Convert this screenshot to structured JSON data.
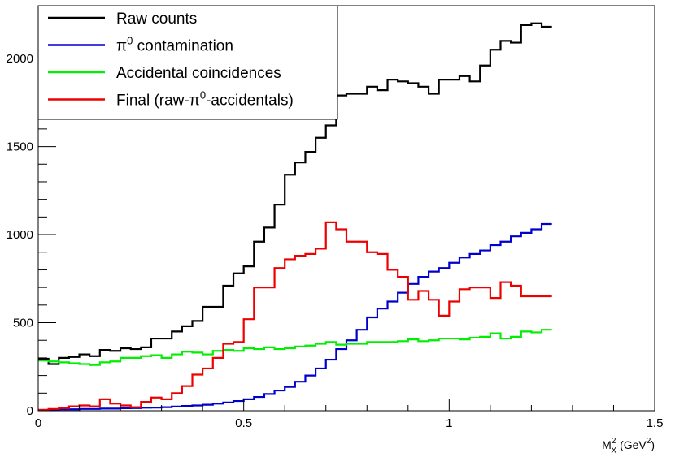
{
  "chart_data": {
    "type": "line",
    "style": "step-histogram",
    "title": "",
    "xlabel_main": "M",
    "xlabel_super": "2",
    "xlabel_sub": "X",
    "xlabel_unit_open": "(GeV",
    "xlabel_unit_super": "2",
    "xlabel_unit_close": ")",
    "ylabel": "",
    "xlim": [
      0,
      1.5
    ],
    "ylim": [
      0,
      2300
    ],
    "x_ticks": [
      {
        "value": 0,
        "label": "0"
      },
      {
        "value": 0.5,
        "label": "0.5"
      },
      {
        "value": 1.0,
        "label": "1"
      },
      {
        "value": 1.5,
        "label": "1.5"
      }
    ],
    "y_ticks": [
      {
        "value": 0,
        "label": "0"
      },
      {
        "value": 500,
        "label": "500"
      },
      {
        "value": 1000,
        "label": "1000"
      },
      {
        "value": 1500,
        "label": "1500"
      },
      {
        "value": 2000,
        "label": "2000"
      }
    ],
    "legend_position": "top-left",
    "bin_width": 0.025,
    "series": [
      {
        "name": "Raw counts",
        "legend_label": "Raw counts",
        "color": "#000000",
        "values": [
          295,
          265,
          300,
          305,
          320,
          310,
          345,
          340,
          355,
          350,
          360,
          410,
          410,
          450,
          480,
          510,
          590,
          590,
          710,
          780,
          820,
          960,
          1040,
          1170,
          1340,
          1410,
          1470,
          1550,
          1620,
          1790,
          1800,
          1800,
          1840,
          1820,
          1880,
          1870,
          1860,
          1840,
          1800,
          1880,
          1880,
          1900,
          1870,
          1960,
          2050,
          2100,
          2090,
          2190,
          2200,
          2180
        ]
      },
      {
        "name": "pi0 contamination",
        "legend_label": "π",
        "legend_super": "0",
        "legend_suffix": " contamination",
        "color": "#0000cc",
        "values": [
          5,
          6,
          8,
          8,
          10,
          10,
          12,
          12,
          14,
          15,
          17,
          18,
          20,
          24,
          27,
          30,
          34,
          40,
          47,
          55,
          65,
          78,
          95,
          115,
          135,
          165,
          200,
          240,
          290,
          350,
          400,
          460,
          530,
          580,
          620,
          670,
          720,
          760,
          790,
          810,
          840,
          870,
          890,
          910,
          940,
          960,
          990,
          1010,
          1030,
          1060
        ]
      },
      {
        "name": "Accidental coincidences",
        "legend_label": "Accidental coincidences",
        "color": "#00ee00",
        "values": [
          285,
          280,
          275,
          270,
          265,
          260,
          275,
          280,
          300,
          300,
          310,
          315,
          300,
          320,
          335,
          330,
          320,
          340,
          345,
          340,
          355,
          350,
          360,
          350,
          355,
          365,
          370,
          380,
          390,
          375,
          380,
          380,
          390,
          390,
          390,
          395,
          405,
          395,
          400,
          410,
          410,
          405,
          415,
          420,
          440,
          410,
          420,
          450,
          445,
          460
        ]
      },
      {
        "name": "Final (raw-pi0-accidentals)",
        "legend_label": "Final (raw-π",
        "legend_super": "0",
        "legend_suffix": "-accidentals)",
        "color": "#ee0000",
        "values": [
          5,
          10,
          15,
          25,
          30,
          25,
          65,
          40,
          30,
          20,
          50,
          75,
          65,
          100,
          140,
          205,
          240,
          300,
          380,
          390,
          520,
          700,
          700,
          810,
          860,
          880,
          890,
          920,
          1070,
          1030,
          960,
          960,
          900,
          890,
          800,
          760,
          630,
          680,
          630,
          540,
          620,
          690,
          700,
          700,
          640,
          730,
          710,
          650,
          650,
          650
        ]
      }
    ]
  }
}
